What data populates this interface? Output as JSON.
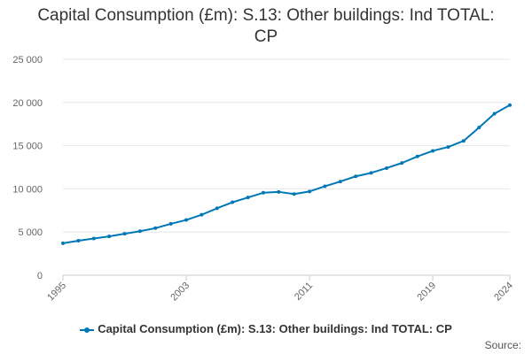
{
  "chart_data": {
    "type": "line",
    "title": "Capital Consumption (£m): S.13: Other buildings: Ind TOTAL: CP",
    "xlabel": "",
    "ylabel": "",
    "ylim": [
      0,
      25000
    ],
    "yticks": [
      0,
      5000,
      10000,
      15000,
      20000,
      25000
    ],
    "ytick_labels": [
      "0",
      "5 000",
      "10 000",
      "15 000",
      "20 000",
      "25 000"
    ],
    "xlim": [
      1995,
      2024
    ],
    "xticks": [
      1995,
      2003,
      2011,
      2019,
      2024
    ],
    "xtick_labels": [
      "1995",
      "2003",
      "2011",
      "2019",
      "2024"
    ],
    "grid": true,
    "legend_position": "bottom-center",
    "series": [
      {
        "name": "Capital Consumption (£m): S.13: Other buildings: Ind TOTAL: CP",
        "color": "#0077b6",
        "x": [
          1995,
          1996,
          1997,
          1998,
          1999,
          2000,
          2001,
          2002,
          2003,
          2004,
          2005,
          2006,
          2007,
          2008,
          2009,
          2010,
          2011,
          2012,
          2013,
          2014,
          2015,
          2016,
          2017,
          2018,
          2019,
          2020,
          2021,
          2022,
          2023,
          2024
        ],
        "values": [
          3700,
          4000,
          4250,
          4500,
          4800,
          5100,
          5450,
          5950,
          6400,
          7000,
          7750,
          8450,
          9000,
          9550,
          9650,
          9400,
          9700,
          10300,
          10850,
          11450,
          11850,
          12400,
          13000,
          13750,
          14400,
          14850,
          15550,
          17100,
          18700,
          19700
        ]
      }
    ]
  },
  "source_label": "Source:"
}
